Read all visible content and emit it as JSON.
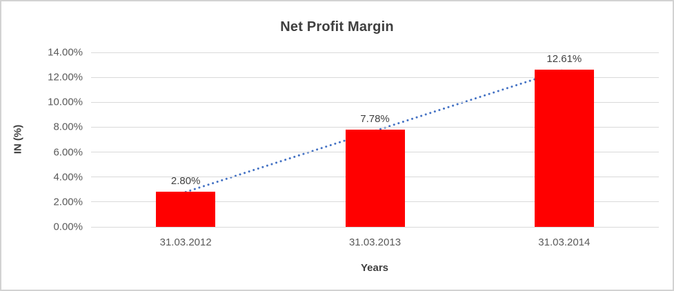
{
  "chart_data": {
    "type": "bar",
    "title": "Net Profit Margin",
    "xlabel": "Years",
    "ylabel": "IN (%)",
    "categories": [
      "31.03.2012",
      "31.03.2013",
      "31.03.2014"
    ],
    "values": [
      2.8,
      7.78,
      12.61
    ],
    "data_labels": [
      "2.80%",
      "7.78%",
      "12.61%"
    ],
    "ylim": [
      0,
      14
    ],
    "ytick_step": 2,
    "ytick_labels": [
      "0.00%",
      "2.00%",
      "4.00%",
      "6.00%",
      "8.00%",
      "10.00%",
      "12.00%",
      "14.00%"
    ],
    "grid": true,
    "legend": "none",
    "trendline": {
      "type": "linear",
      "style": "dotted",
      "start_value": 2.8,
      "end_value": 12.61
    }
  },
  "colors": {
    "bar": "#ff0000",
    "trendline": "#4472c4",
    "gridline": "#d9d9d9",
    "tick_text": "#595959",
    "title_text": "#3f3f3f",
    "frame_border": "#d2d2d2",
    "background": "#ffffff"
  }
}
